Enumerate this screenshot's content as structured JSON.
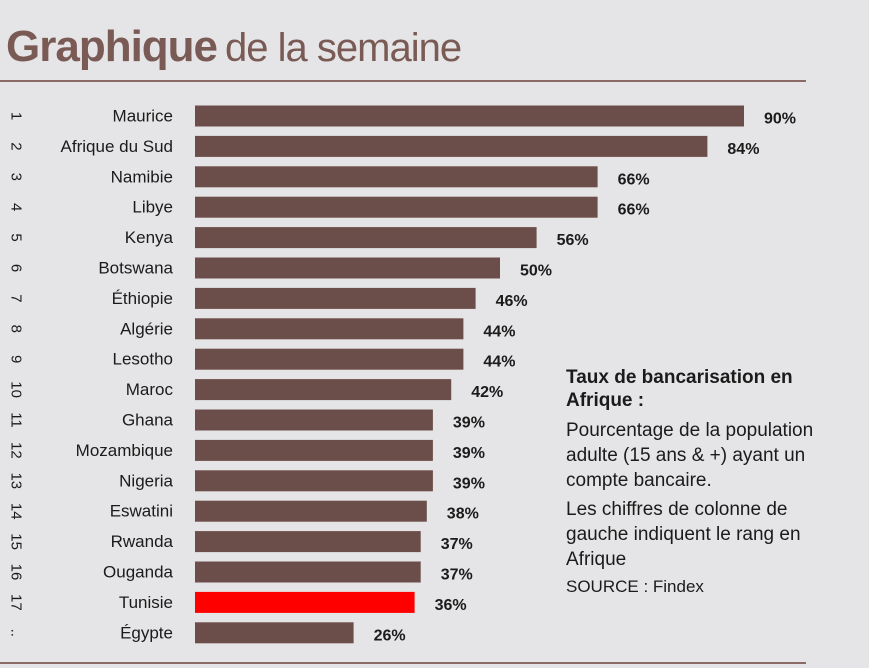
{
  "header": {
    "title_strong": "Graphique",
    "title_light": "de la semaine"
  },
  "note": {
    "title": "Taux de bancarisation en Afrique :",
    "paragraph1": "Pourcentage de la population adulte (15 ans & +) ayant un compte bancaire.",
    "paragraph2": "Les chiffres de colonne de gauche indiquent le rang en Afrique",
    "source": "SOURCE : Findex"
  },
  "colors": {
    "bar": "#6b4e49",
    "highlight": "#ff0000",
    "text": "#1b1b1b"
  },
  "chart_data": {
    "type": "bar",
    "orientation": "horizontal",
    "ranks": [
      "1",
      "2",
      "3",
      "4",
      "5",
      "6",
      "7",
      "8",
      "9",
      "10",
      "11",
      "12",
      "13",
      "14",
      "15",
      "16",
      "17",
      ".."
    ],
    "categories": [
      "Maurice",
      "Afrique du Sud",
      "Namibie",
      "Libye",
      "Kenya",
      "Botswana",
      "Éthiopie",
      "Algérie",
      "Lesotho",
      "Maroc",
      "Ghana",
      "Mozambique",
      "Nigeria",
      "Eswatini",
      "Rwanda",
      "Ouganda",
      "Tunisie",
      "Égypte"
    ],
    "values": [
      90,
      84,
      66,
      66,
      56,
      50,
      46,
      44,
      44,
      42,
      39,
      39,
      39,
      38,
      37,
      37,
      36,
      26
    ],
    "value_labels": [
      "90%",
      "84%",
      "66%",
      "66%",
      "56%",
      "50%",
      "46%",
      "44%",
      "44%",
      "42%",
      "39%",
      "39%",
      "39%",
      "38%",
      "37%",
      "37%",
      "36%",
      "26%"
    ],
    "highlighted": "Tunisie",
    "xlim": [
      0,
      90
    ],
    "unit": "%"
  }
}
